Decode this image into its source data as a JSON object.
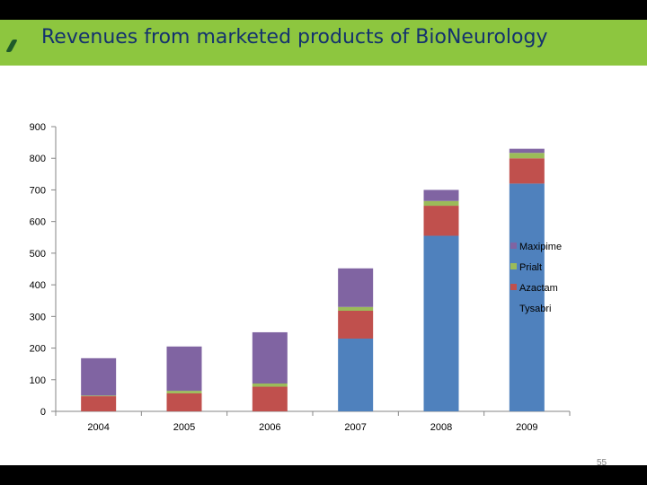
{
  "slide": {
    "title": "Revenues from marketed products of BioNeurology",
    "page_number": "55"
  },
  "colors": {
    "title_bar": "#8dc63f",
    "title_text": "#14326e",
    "Tysabri": "#4f81bd",
    "Azactam": "#c0504d",
    "Prialt": "#9bbb59",
    "Maxipime": "#8064a2"
  },
  "chart_data": {
    "type": "bar",
    "stacked": true,
    "categories": [
      "2004",
      "2005",
      "2006",
      "2007",
      "2008",
      "2009"
    ],
    "series": [
      {
        "name": "Tysabri",
        "values": [
          0,
          0,
          0,
          230,
          555,
          720
        ]
      },
      {
        "name": "Azactam",
        "values": [
          48,
          57,
          78,
          88,
          95,
          80
        ]
      },
      {
        "name": "Prialt",
        "values": [
          2,
          8,
          10,
          12,
          15,
          17
        ]
      },
      {
        "name": "Maxipime",
        "values": [
          118,
          140,
          162,
          122,
          35,
          13
        ]
      }
    ],
    "ylim": [
      0,
      900
    ],
    "yticks": [
      "0",
      "100",
      "200",
      "300",
      "400",
      "500",
      "600",
      "700",
      "800",
      "900"
    ],
    "grid": false,
    "legend_position": "right",
    "legend_order": [
      "Maxipime",
      "Prialt",
      "Azactam",
      "Tysabri"
    ]
  }
}
